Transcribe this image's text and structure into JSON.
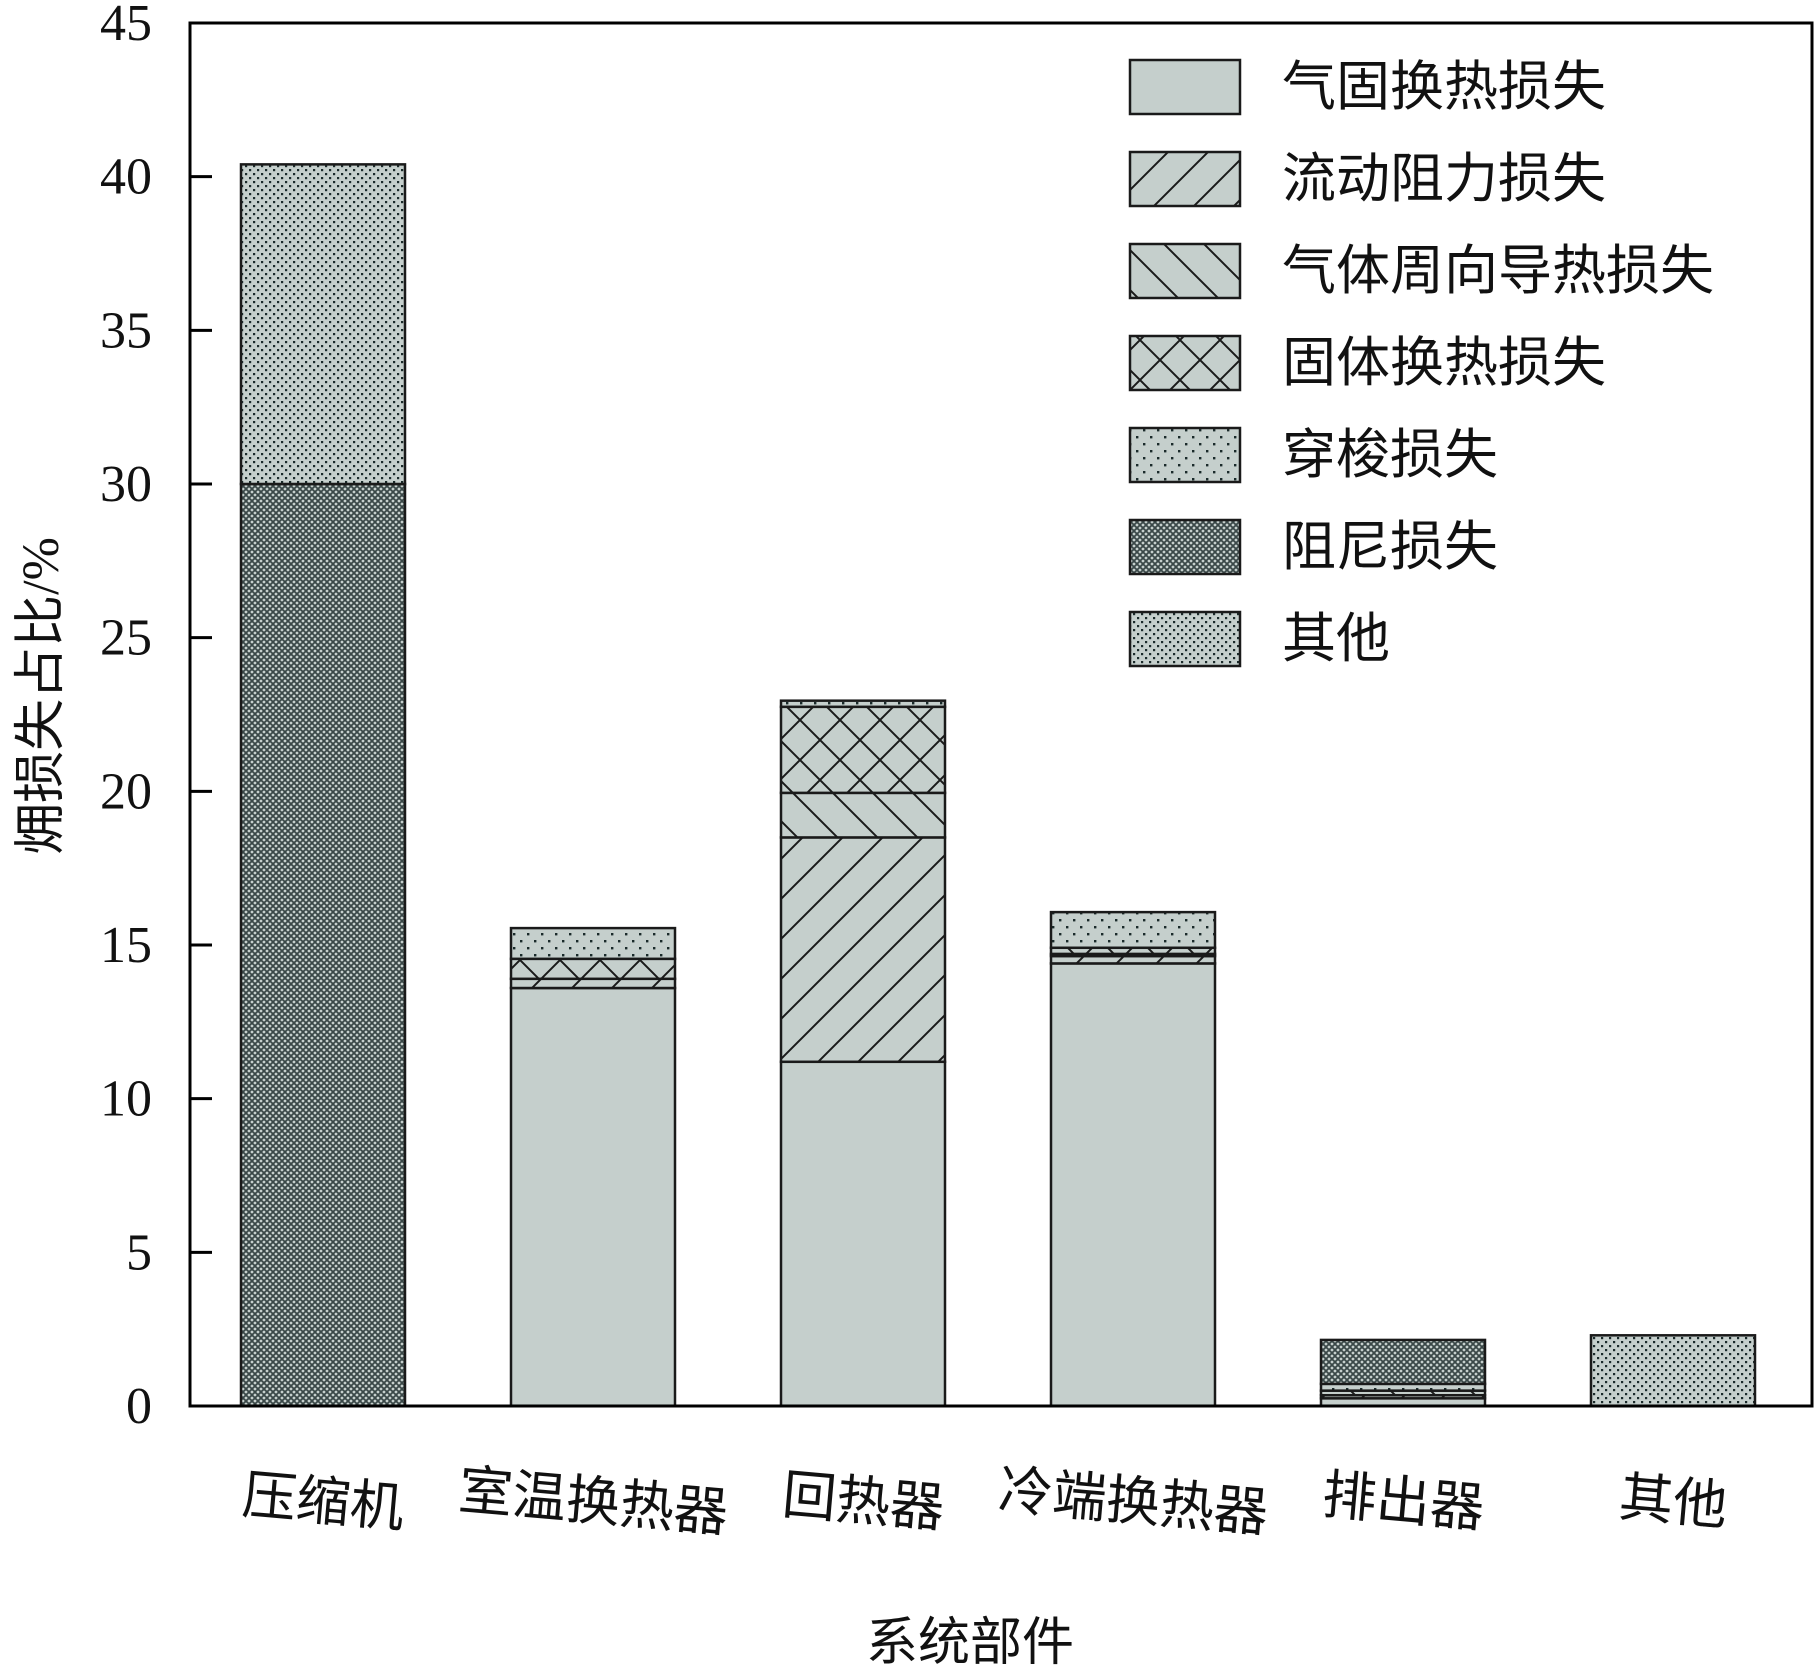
{
  "chart_data": {
    "type": "bar",
    "stacked": true,
    "title": "",
    "xlabel": "系统部件",
    "ylabel": "㶲损失占比/%",
    "ylim": [
      0,
      45
    ],
    "yticks": [
      "0",
      "5",
      "10",
      "15",
      "20",
      "25",
      "30",
      "35",
      "40",
      "45"
    ],
    "grid": false,
    "legend_position": "top-right",
    "categories": [
      "压缩机",
      "室温换热器",
      "回热器",
      "冷端换热器",
      "排出器",
      "其他"
    ],
    "series": [
      {
        "name": "气固换热损失",
        "pattern": "solid",
        "values": [
          0,
          13.6,
          11.2,
          14.4,
          0.25,
          0
        ]
      },
      {
        "name": "流动阻力损失",
        "pattern": "forward-hatch",
        "values": [
          0,
          0.3,
          7.3,
          0.24,
          0.1,
          0
        ]
      },
      {
        "name": "气体周向导热损失",
        "pattern": "back-hatch",
        "values": [
          0,
          0,
          1.45,
          0.07,
          0.15,
          0
        ]
      },
      {
        "name": "固体换热损失",
        "pattern": "cross-hatch",
        "values": [
          0,
          0.65,
          2.8,
          0.2,
          0,
          0
        ]
      },
      {
        "name": "穿梭损失",
        "pattern": "sparse-dots",
        "values": [
          0,
          1.0,
          0.2,
          1.16,
          0.22,
          0
        ]
      },
      {
        "name": "阻尼损失",
        "pattern": "dense-crosshatch",
        "values": [
          30.0,
          0,
          0,
          0,
          1.43,
          0
        ]
      },
      {
        "name": "其他",
        "pattern": "dense-dots",
        "values": [
          10.4,
          0,
          0,
          0,
          0,
          2.3
        ]
      }
    ],
    "colors": {
      "fill": "#c5cfcc",
      "ink": "#1a1a1a"
    }
  }
}
